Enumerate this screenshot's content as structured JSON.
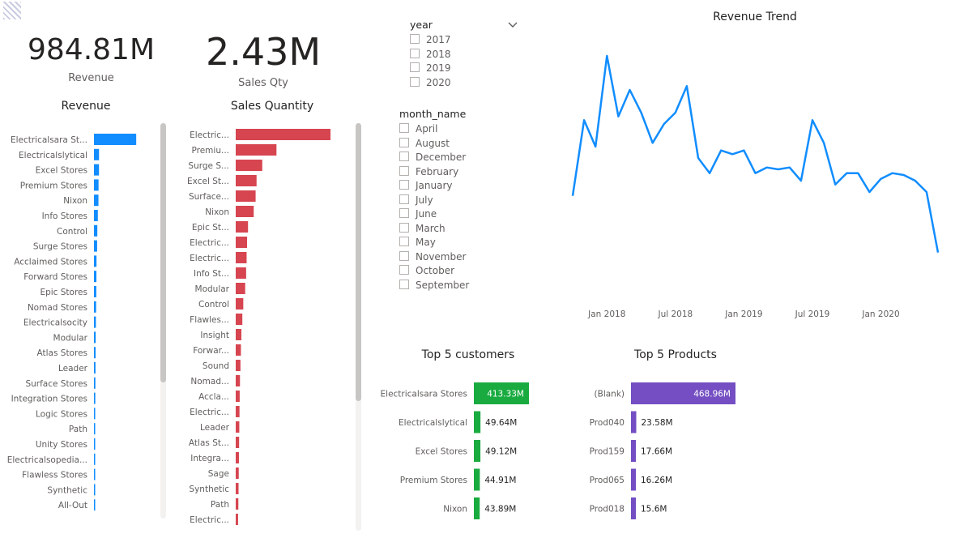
{
  "kpis": {
    "revenue": {
      "value": "984.81M",
      "label": "Revenue"
    },
    "sales_qty": {
      "value": "2.43M",
      "label": "Sales Qty"
    }
  },
  "slicers": {
    "year": {
      "title": "year",
      "options": [
        "2017",
        "2018",
        "2019",
        "2020"
      ]
    },
    "month": {
      "title": "month_name",
      "options": [
        "April",
        "August",
        "December",
        "February",
        "January",
        "July",
        "June",
        "March",
        "May",
        "November",
        "October",
        "September"
      ]
    }
  },
  "icons": {
    "dropdown": "chevron-down-icon",
    "logo": "report-logo"
  },
  "colors": {
    "revenue": "#118DFF",
    "quantity": "#D64550",
    "customers": "#1AAB40",
    "products": "#744EC2",
    "trend": "#118DFF"
  },
  "chart_data": [
    {
      "id": "revenue_bar",
      "type": "bar",
      "orientation": "horizontal",
      "title": "Revenue",
      "categories": [
        "Electricalsara St...",
        "Electricalslytical",
        "Excel Stores",
        "Premium Stores",
        "Nixon",
        "Info Stores",
        "Control",
        "Surge Stores",
        "Acclaimed Stores",
        "Forward Stores",
        "Epic Stores",
        "Nomad Stores",
        "Electricalsocity",
        "Modular",
        "Atlas Stores",
        "Leader",
        "Surface Stores",
        "Integration Stores",
        "Logic Stores",
        "Path",
        "Unity Stores",
        "Electricalsopedia...",
        "Flawless Stores",
        "Synthetic",
        "All-Out"
      ],
      "values": [
        413.33,
        49.64,
        49.12,
        44.91,
        43.89,
        38,
        33,
        31,
        25,
        24,
        23,
        21,
        19,
        17,
        16,
        15,
        14,
        13,
        12,
        11,
        10,
        9,
        8,
        7,
        6
      ],
      "xlim": [
        0,
        420
      ]
    },
    {
      "id": "quantity_bar",
      "type": "bar",
      "orientation": "horizontal",
      "title": "Sales Quantity",
      "categories": [
        "Electric...",
        "Premiu...",
        "Surge S...",
        "Excel St...",
        "Surface...",
        "Nixon",
        "Epic St...",
        "Electric...",
        "Electric...",
        "Info St...",
        "Modular",
        "Control",
        "Flawles...",
        "Insight",
        "Forwar...",
        "Sound",
        "Nomad...",
        "Accla...",
        "Electric...",
        "Leader",
        "Atlas St...",
        "Integra...",
        "Sage",
        "Synthetic",
        "Path",
        "Electric..."
      ],
      "values": [
        1000,
        430,
        280,
        220,
        210,
        190,
        130,
        120,
        115,
        110,
        100,
        80,
        70,
        60,
        55,
        50,
        45,
        42,
        40,
        38,
        36,
        34,
        32,
        30,
        28,
        25
      ],
      "xlim": [
        0,
        1000
      ]
    },
    {
      "id": "revenue_trend",
      "type": "line",
      "title": "Revenue Trend",
      "x_ticks": [
        "Jan 2018",
        "Jul 2018",
        "Jan 2019",
        "Jul 2019",
        "Jan 2020"
      ],
      "x": [
        "2017-10",
        "2017-11",
        "2017-12",
        "2018-01",
        "2018-02",
        "2018-03",
        "2018-04",
        "2018-05",
        "2018-06",
        "2018-07",
        "2018-08",
        "2018-09",
        "2018-10",
        "2018-11",
        "2018-12",
        "2019-01",
        "2019-02",
        "2019-03",
        "2019-04",
        "2019-05",
        "2019-06",
        "2019-07",
        "2019-08",
        "2019-09",
        "2019-10",
        "2019-11",
        "2019-12",
        "2020-01",
        "2020-02",
        "2020-03",
        "2020-04",
        "2020-05",
        "2020-06"
      ],
      "values": [
        20,
        40,
        33,
        57,
        41,
        48,
        42,
        34,
        39,
        42,
        49,
        30,
        26,
        32,
        31,
        32,
        26,
        27.5,
        27,
        27.5,
        24,
        40,
        34,
        23,
        26,
        26,
        21,
        24.5,
        26,
        25.5,
        24,
        21,
        5
      ],
      "ylim": [
        0,
        60
      ],
      "grid": false
    },
    {
      "id": "top5_customers",
      "type": "bar",
      "orientation": "horizontal",
      "title": "Top 5 customers",
      "categories": [
        "Electricalsara Stores",
        "Electricalslytical",
        "Excel Stores",
        "Premium Stores",
        "Nixon"
      ],
      "values": [
        413.33,
        49.64,
        49.12,
        44.91,
        43.89
      ],
      "labels": [
        "413.33M",
        "49.64M",
        "49.12M",
        "44.91M",
        "43.89M"
      ],
      "xlim": [
        0,
        413.33
      ]
    },
    {
      "id": "top5_products",
      "type": "bar",
      "orientation": "horizontal",
      "title": "Top 5 Products",
      "categories": [
        "(Blank)",
        "Prod040",
        "Prod159",
        "Prod065",
        "Prod018"
      ],
      "values": [
        468.96,
        23.58,
        17.66,
        16.26,
        15.6
      ],
      "labels": [
        "468.96M",
        "23.58M",
        "17.66M",
        "16.26M",
        "15.6M"
      ],
      "xlim": [
        0,
        468.96
      ]
    }
  ]
}
